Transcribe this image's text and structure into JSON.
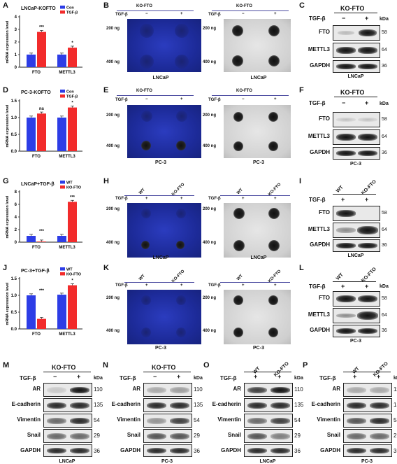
{
  "colors": {
    "con": "#2d3de6",
    "tgf": "#f22b2b",
    "blue_membrane": "#1f2fa0",
    "gray_membrane": "#d4d4d4"
  },
  "panels": {
    "A": {
      "letter": "A",
      "title": "LNCaP-KOFTO",
      "ylabel": "mRNA expression level",
      "legend": [
        "Con",
        "TGF-β"
      ],
      "groups": [
        "FTO",
        "METTL3"
      ],
      "yticks": [
        "0",
        "1",
        "2",
        "3",
        "4"
      ],
      "sig": [
        "***",
        "*"
      ]
    },
    "B": {
      "letter": "B",
      "header": "KO-FTO",
      "tgf": "TGF-β",
      "minus": "−",
      "plus": "+",
      "ng200": "200 ng",
      "ng400": "400 ng",
      "cap": "LNCaP"
    },
    "C": {
      "letter": "C",
      "header": "KO-FTO",
      "tgf": "TGF-β",
      "minus": "−",
      "plus": "+",
      "kda": "kDa",
      "rows": [
        {
          "name": "FTO",
          "kda": "58"
        },
        {
          "name": "METTL3",
          "kda": "64"
        },
        {
          "name": "GAPDH",
          "kda": "36"
        }
      ],
      "cap": "LNCaP"
    },
    "D": {
      "letter": "D",
      "title": "PC-3-KOFTO",
      "ylabel": "mRNA expression level",
      "legend": [
        "Con",
        "TGF-β"
      ],
      "groups": [
        "FTO",
        "METTL3"
      ],
      "yticks": [
        "0.0",
        "0.5",
        "1.0",
        "1.5"
      ],
      "sig": [
        "ns",
        "*"
      ]
    },
    "E": {
      "letter": "E",
      "header": "KO-FTO",
      "tgf": "TGF-β",
      "minus": "−",
      "plus": "+",
      "ng200": "200 ng",
      "ng400": "400 ng",
      "cap": "PC-3"
    },
    "F": {
      "letter": "F",
      "header": "KO-FTO",
      "tgf": "TGF-β",
      "minus": "−",
      "plus": "+",
      "kda": "kDa",
      "rows": [
        {
          "name": "FTO",
          "kda": "58"
        },
        {
          "name": "METTL3",
          "kda": "64"
        },
        {
          "name": "GAPDH",
          "kda": "36"
        }
      ],
      "cap": "PC-3"
    },
    "G": {
      "letter": "G",
      "title": "LNCaP+TGF-β",
      "ylabel": "mRNA expression level",
      "legend": [
        "WT",
        "KO-FTO"
      ],
      "groups": [
        "FTO",
        "METTL3"
      ],
      "yticks": [
        "0",
        "2",
        "4",
        "6",
        "8"
      ],
      "sig": [
        "***",
        "***"
      ]
    },
    "H": {
      "letter": "H",
      "wt": "WT",
      "ko": "KO-FTO",
      "tgf": "TGF-β",
      "plus": "+",
      "ng200": "200 ng",
      "ng400": "400 ng",
      "cap": "LNCaP"
    },
    "I": {
      "letter": "I",
      "wt": "WT",
      "ko": "KO-FTO",
      "tgf": "TGF-β",
      "plus": "+",
      "kda": "kDa",
      "rows": [
        {
          "name": "FTO",
          "kda": "58"
        },
        {
          "name": "METTL3",
          "kda": "64"
        },
        {
          "name": "GAPDH",
          "kda": "36"
        }
      ],
      "cap": "LNCaP"
    },
    "J": {
      "letter": "J",
      "title": "PC-3+TGF-β",
      "ylabel": "mRNA expression level",
      "legend": [
        "WT",
        "KO-FTO"
      ],
      "groups": [
        "FTO",
        "METTL3"
      ],
      "yticks": [
        "0.0",
        "0.5",
        "1.0",
        "1.5"
      ],
      "sig": [
        "***",
        "*"
      ]
    },
    "K": {
      "letter": "K",
      "wt": "WT",
      "ko": "KO-FTO",
      "tgf": "TGF-β",
      "plus": "+",
      "ng200": "200 ng",
      "ng400": "400 ng",
      "cap": "PC-3"
    },
    "L": {
      "letter": "L",
      "wt": "WT",
      "ko": "KO-FTO",
      "tgf": "TGF-β",
      "plus": "+",
      "kda": "kDa",
      "rows": [
        {
          "name": "FTO",
          "kda": "58"
        },
        {
          "name": "METTL3",
          "kda": "64"
        },
        {
          "name": "GAPDH",
          "kda": "36"
        }
      ],
      "cap": "PC-3"
    },
    "M": {
      "letter": "M",
      "header": "KO-FTO",
      "tgf": "TGF-β",
      "minus": "−",
      "plus": "+",
      "kda": "kDa",
      "cap": "LNCaP"
    },
    "N": {
      "letter": "N",
      "header": "KO-FTO",
      "tgf": "TGF-β",
      "minus": "−",
      "plus": "+",
      "kda": "kDa",
      "cap": "PC-3"
    },
    "O": {
      "letter": "O",
      "wt": "WT",
      "ko": "KO-FTO",
      "tgf": "TGF-β",
      "plus": "+",
      "kda": "kDa",
      "cap": "LNCaP"
    },
    "P": {
      "letter": "P",
      "wt": "WT",
      "ko": "KO-FTO",
      "tgf": "TGF-β",
      "plus": "+",
      "kda": "kDa",
      "cap": "PC-3"
    }
  },
  "emt_rows": [
    {
      "name": "AR",
      "kda": "110"
    },
    {
      "name": "E-cadherin",
      "kda": "135"
    },
    {
      "name": "Vimentin",
      "kda": "54"
    },
    {
      "name": "Snail",
      "kda": "29"
    },
    {
      "name": "GAPDH",
      "kda": "36"
    }
  ],
  "chart_data": [
    {
      "panel": "A",
      "type": "bar",
      "title": "LNCaP-KOFTO",
      "ylabel": "mRNA expression level",
      "categories": [
        "FTO",
        "METTL3"
      ],
      "ylim": [
        0,
        4
      ],
      "series": [
        {
          "name": "Con",
          "values": [
            1.0,
            1.0
          ]
        },
        {
          "name": "TGF-β",
          "values": [
            2.8,
            1.55
          ]
        }
      ]
    },
    {
      "panel": "D",
      "type": "bar",
      "title": "PC-3-KOFTO",
      "ylabel": "mRNA expression level",
      "categories": [
        "FTO",
        "METTL3"
      ],
      "ylim": [
        0,
        1.5
      ],
      "series": [
        {
          "name": "Con",
          "values": [
            1.0,
            1.0
          ]
        },
        {
          "name": "TGF-β",
          "values": [
            1.12,
            1.3
          ]
        }
      ]
    },
    {
      "panel": "G",
      "type": "bar",
      "title": "LNCaP+TGF-β",
      "ylabel": "mRNA expression level",
      "categories": [
        "FTO",
        "METTL3"
      ],
      "ylim": [
        0,
        8
      ],
      "series": [
        {
          "name": "WT",
          "values": [
            1.0,
            1.0
          ]
        },
        {
          "name": "KO-FTO",
          "values": [
            0.1,
            6.4
          ]
        }
      ]
    },
    {
      "panel": "J",
      "type": "bar",
      "title": "PC-3+TGF-β",
      "ylabel": "mRNA expression level",
      "categories": [
        "FTO",
        "METTL3"
      ],
      "ylim": [
        0,
        1.5
      ],
      "series": [
        {
          "name": "WT",
          "values": [
            1.0,
            1.02
          ]
        },
        {
          "name": "KO-FTO",
          "values": [
            0.3,
            1.3
          ]
        }
      ]
    }
  ]
}
